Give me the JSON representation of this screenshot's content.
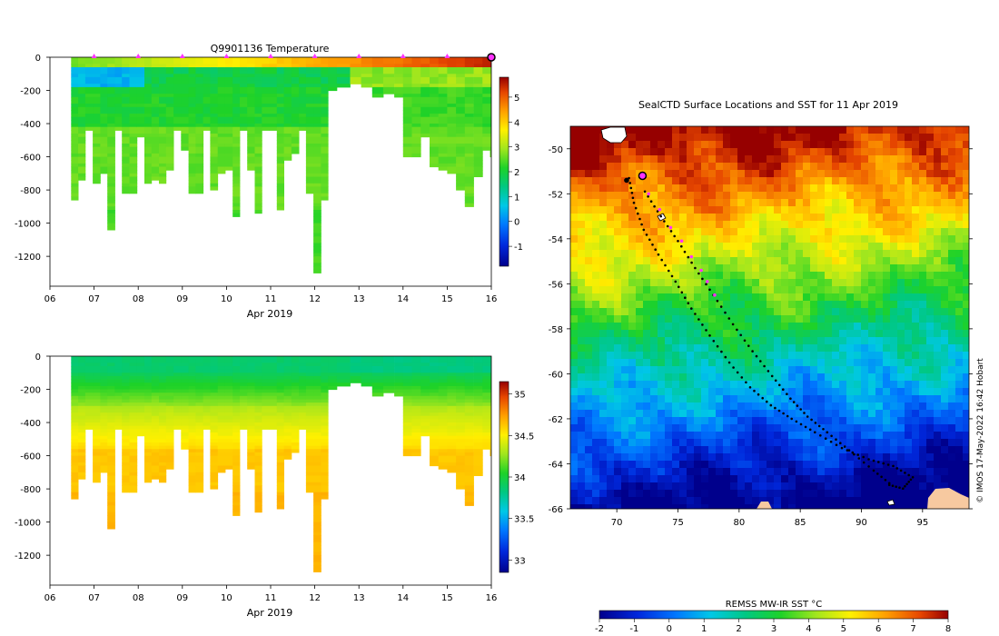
{
  "chart_data": [
    {
      "type": "heatmap",
      "title": "Q9901136  Temperature",
      "xlabel": "Apr 2019",
      "ylabel": "",
      "x_tick_labels": [
        "06",
        "07",
        "08",
        "09",
        "10",
        "11",
        "12",
        "13",
        "14",
        "15",
        "16"
      ],
      "y_ticks": [
        0,
        -200,
        -400,
        -600,
        -800,
        -1000,
        -1200
      ],
      "xlim_days": [
        6,
        16
      ],
      "ylim": [
        -1380,
        0
      ],
      "profile_x_day": [
        6.48,
        6.64,
        6.8,
        6.97,
        7.14,
        7.3,
        7.47,
        7.63,
        7.8,
        7.97,
        8.14,
        8.3,
        8.47,
        8.63,
        8.8,
        8.97,
        9.14,
        9.3,
        9.47,
        9.63,
        9.8,
        9.97,
        10.14,
        10.3,
        10.47,
        10.64,
        10.8,
        10.97,
        11.14,
        11.3,
        11.47,
        11.64,
        11.8,
        11.97,
        12.14,
        12.3,
        12.5,
        12.8,
        13.05,
        13.3,
        13.55,
        13.8,
        14.0,
        14.2,
        14.4,
        14.6,
        14.8,
        15.0,
        15.2,
        15.4,
        15.6,
        15.8,
        15.97
      ],
      "profile_max_depth": [
        860,
        740,
        440,
        750,
        690,
        1040,
        440,
        810,
        820,
        470,
        760,
        730,
        760,
        680,
        440,
        550,
        820,
        820,
        440,
        800,
        700,
        680,
        960,
        440,
        680,
        930,
        440,
        440,
        910,
        620,
        580,
        440,
        810,
        1300,
        860,
        200,
        170,
        150,
        170,
        230,
        210,
        230,
        590,
        590,
        480,
        650,
        680,
        700,
        790,
        900,
        720,
        560,
        600
      ],
      "colorbar": {
        "ticks": [
          -1,
          0,
          1,
          2,
          3,
          4,
          5
        ],
        "vmin": -1.8,
        "vmax": 5.8
      },
      "markers_days": [
        7,
        8,
        9,
        10,
        11,
        12,
        13,
        14,
        15,
        16
      ],
      "marker_color": "#ff33ff"
    },
    {
      "type": "heatmap",
      "title": "",
      "xlabel": "Apr 2019",
      "ylabel": "",
      "x_tick_labels": [
        "06",
        "07",
        "08",
        "09",
        "10",
        "11",
        "12",
        "13",
        "14",
        "15",
        "16"
      ],
      "y_ticks": [
        0,
        -200,
        -400,
        -600,
        -800,
        -1000,
        -1200
      ],
      "xlim_days": [
        6,
        16
      ],
      "ylim": [
        -1380,
        0
      ],
      "colorbar": {
        "ticks": [
          33,
          33.5,
          34,
          34.5,
          35
        ],
        "vmin": 32.85,
        "vmax": 35.15
      }
    },
    {
      "type": "heatmap",
      "title": "SealCTD Surface Locations and SST for 11 Apr 2019",
      "xlabel": "",
      "ylabel": "",
      "x_ticks": [
        70,
        75,
        80,
        85,
        90,
        95
      ],
      "y_ticks": [
        -50,
        -52,
        -54,
        -56,
        -58,
        -60,
        -62,
        -64,
        -66
      ],
      "xlim": [
        66.2,
        98.8
      ],
      "ylim": [
        -66,
        -49
      ],
      "colorbar_label": "REMSS MW-IR SST °C",
      "colorbar_ticks": [
        -2,
        -1,
        0,
        1,
        2,
        3,
        4,
        5,
        6,
        7,
        8
      ],
      "track": [
        [
          71,
          -51.3
        ],
        [
          71.4,
          -52.4
        ],
        [
          72.2,
          -53.6
        ],
        [
          73.4,
          -54.7
        ],
        [
          74.8,
          -55.9
        ],
        [
          76.1,
          -57.1
        ],
        [
          77.6,
          -58.3
        ],
        [
          79.2,
          -59.5
        ],
        [
          80.9,
          -60.6
        ],
        [
          82.6,
          -61.4
        ],
        [
          84.3,
          -62.0
        ],
        [
          86.2,
          -62.6
        ],
        [
          88.4,
          -63.3
        ],
        [
          90.6,
          -63.8
        ],
        [
          92.6,
          -64.1
        ],
        [
          94.2,
          -64.6
        ],
        [
          93.4,
          -65.1
        ],
        [
          92.0,
          -64.9
        ]
      ],
      "track2": [
        [
          72.3,
          -51.9
        ],
        [
          73.6,
          -53.0
        ],
        [
          75.0,
          -54.1
        ],
        [
          76.4,
          -55.3
        ],
        [
          77.9,
          -56.5
        ],
        [
          79.5,
          -57.8
        ],
        [
          81.1,
          -59.0
        ],
        [
          82.7,
          -60.1
        ],
        [
          84.2,
          -61.1
        ],
        [
          85.6,
          -61.9
        ],
        [
          87.2,
          -62.6
        ],
        [
          89.0,
          -63.4
        ],
        [
          91.0,
          -64.3
        ],
        [
          92.6,
          -65.0
        ]
      ],
      "pink_positions": [
        [
          72.6,
          -52.0
        ],
        [
          73.5,
          -52.7
        ],
        [
          74.4,
          -53.5
        ],
        [
          75.3,
          -54.1
        ],
        [
          76.1,
          -54.8
        ],
        [
          76.9,
          -55.4
        ],
        [
          77.4,
          -55.9
        ],
        [
          78.0,
          -56.5
        ]
      ],
      "current_position": [
        72.1,
        -51.2
      ],
      "track_start": [
        70.8,
        -51.4
      ]
    }
  ],
  "credit": "© IMOS 17-May-2022 16:42 Hobart"
}
